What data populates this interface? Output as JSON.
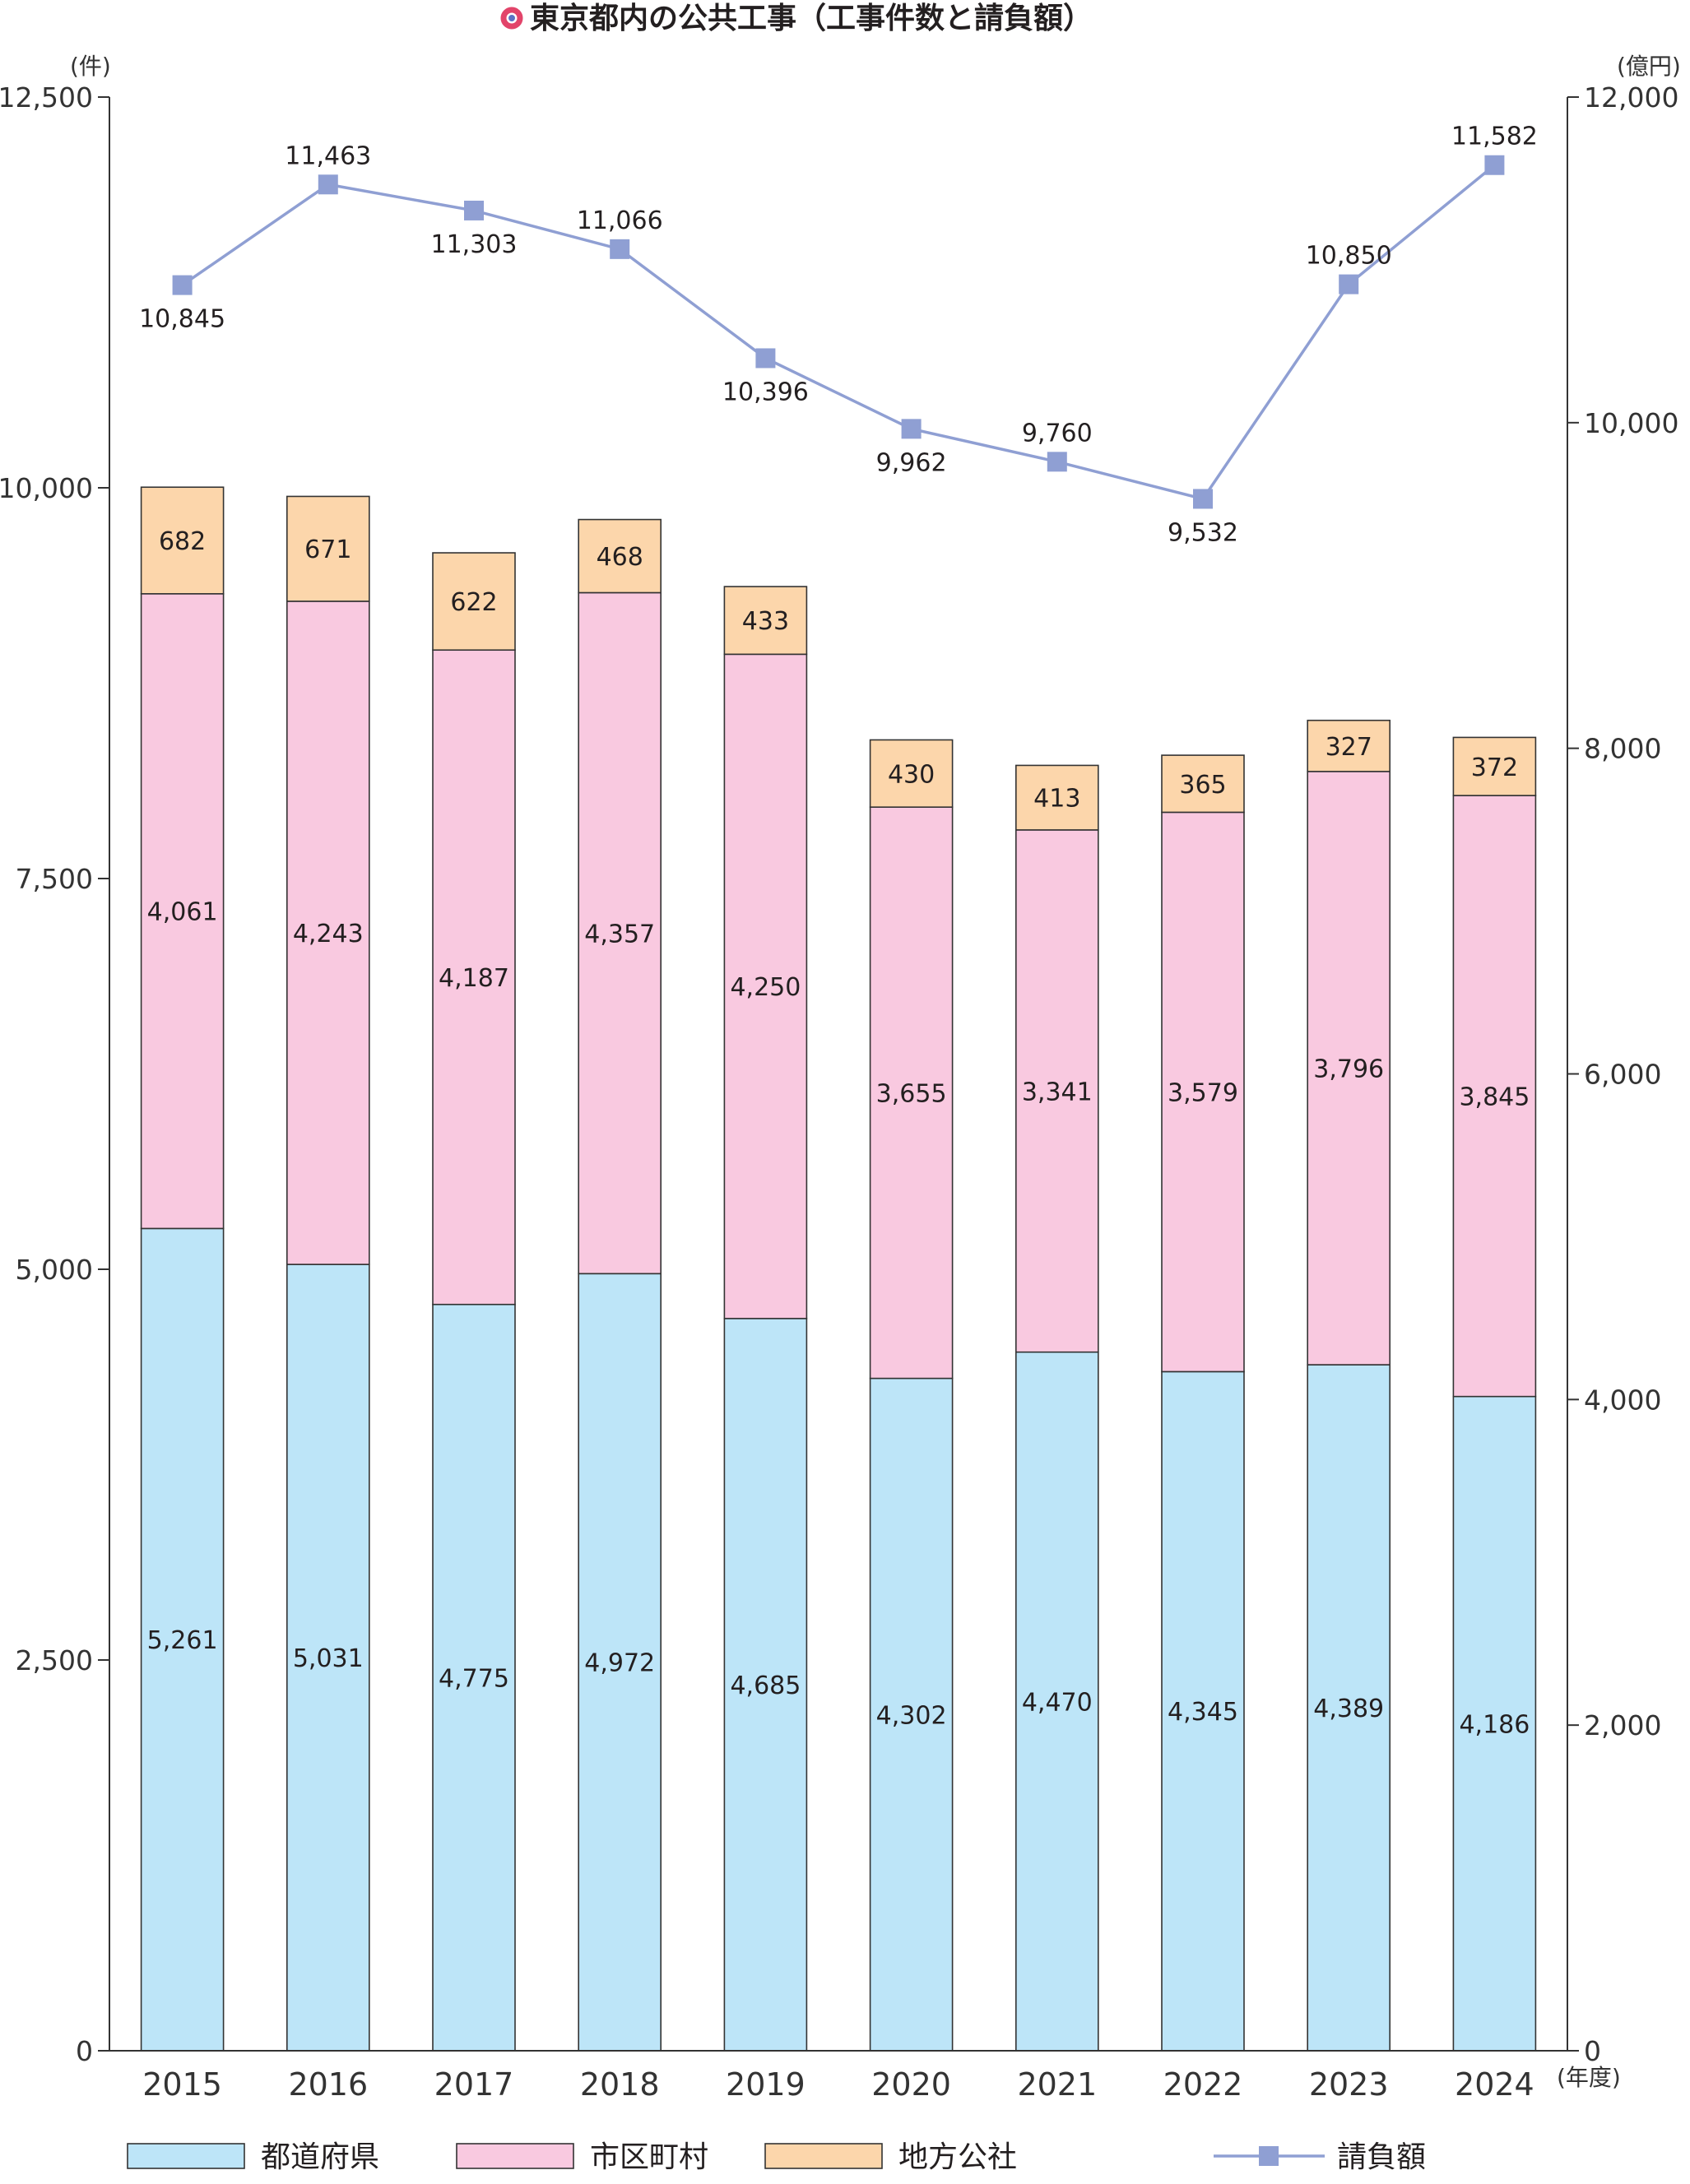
{
  "chart_data": {
    "type": "bar",
    "title": "東京都内の公共工事（工事件数と請負額）",
    "left_axis_unit": "(件)",
    "right_axis_unit": "(億円)",
    "x_axis_unit": "(年度)",
    "categories": [
      "2015",
      "2016",
      "2017",
      "2018",
      "2019",
      "2020",
      "2021",
      "2022",
      "2023",
      "2024"
    ],
    "left_ylim": [
      0,
      12500
    ],
    "left_ticks": [
      0,
      2500,
      5000,
      7500,
      10000,
      12500
    ],
    "left_tick_labels": [
      "0",
      "2,500",
      "5,000",
      "7,500",
      "10,000",
      "12,500"
    ],
    "right_ylim": [
      0,
      12000
    ],
    "right_ticks": [
      0,
      2000,
      4000,
      6000,
      8000,
      10000,
      12000
    ],
    "right_tick_labels": [
      "0",
      "2,000",
      "4,000",
      "6,000",
      "8,000",
      "10,000",
      "12,000"
    ],
    "grid": false,
    "legend_position": "bottom",
    "series": [
      {
        "name": "都道府県",
        "kind": "stacked-bar",
        "axis": "left",
        "color": "#bde5f8",
        "values": [
          5261,
          5031,
          4775,
          4972,
          4685,
          4302,
          4470,
          4345,
          4389,
          4186
        ],
        "labels": [
          "5,261",
          "5,031",
          "4,775",
          "4,972",
          "4,685",
          "4,302",
          "4,470",
          "4,345",
          "4,389",
          "4,186"
        ]
      },
      {
        "name": "市区町村",
        "kind": "stacked-bar",
        "axis": "left",
        "color": "#f9c9e0",
        "values": [
          4061,
          4243,
          4187,
          4357,
          4250,
          3655,
          3341,
          3579,
          3796,
          3845
        ],
        "labels": [
          "4,061",
          "4,243",
          "4,187",
          "4,357",
          "4,250",
          "3,655",
          "3,341",
          "3,579",
          "3,796",
          "3,845"
        ]
      },
      {
        "name": "地方公社",
        "kind": "stacked-bar",
        "axis": "left",
        "color": "#fcd6ab",
        "values": [
          682,
          671,
          622,
          468,
          433,
          430,
          413,
          365,
          327,
          372
        ],
        "labels": [
          "682",
          "671",
          "622",
          "468",
          "433",
          "430",
          "413",
          "365",
          "327",
          "372"
        ]
      },
      {
        "name": "請負額",
        "kind": "line",
        "axis": "right",
        "color": "#8f9fd3",
        "values": [
          10845,
          11463,
          11303,
          11066,
          10396,
          9962,
          9760,
          9532,
          10850,
          11582
        ],
        "labels": [
          "10,845",
          "11,463",
          "11,303",
          "11,066",
          "10,396",
          "9,962",
          "9,760",
          "9,532",
          "10,850",
          "11,582"
        ],
        "label_positions": [
          "below",
          "above",
          "below",
          "above",
          "below",
          "below",
          "above",
          "below",
          "above",
          "above"
        ]
      }
    ]
  },
  "colors": {
    "title_dot_outer": "#e2446a",
    "title_dot_inner": "#5b73c4",
    "axis": "#333333",
    "bar_stroke": "#333333"
  }
}
